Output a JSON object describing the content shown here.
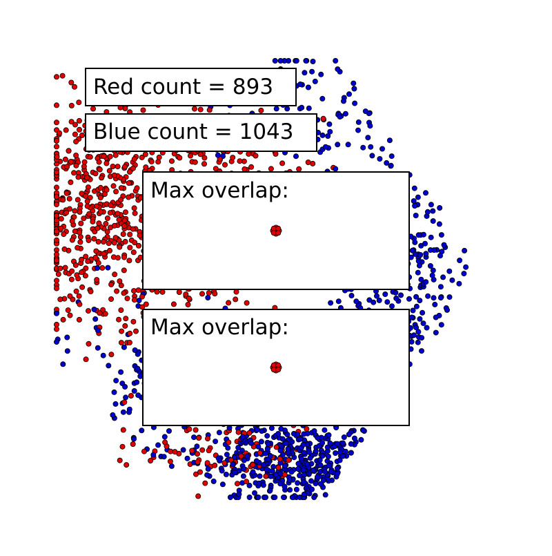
{
  "chart_data": {
    "type": "scatter",
    "title": "",
    "xlabel": "",
    "ylabel": "",
    "grid": false,
    "axes_visible": false,
    "series": [
      {
        "color": "#e00000",
        "count": 893,
        "clusters": [
          {
            "cx": 0.11,
            "cy": 0.33,
            "sx": 0.09,
            "sy": 0.14,
            "n": 560
          },
          {
            "cx": 0.42,
            "cy": 0.25,
            "sx": 0.1,
            "sy": 0.06,
            "n": 150
          },
          {
            "cx": 0.3,
            "cy": 0.6,
            "sx": 0.12,
            "sy": 0.09,
            "n": 90
          },
          {
            "cx": 0.38,
            "cy": 0.9,
            "sx": 0.1,
            "sy": 0.04,
            "n": 93
          }
        ]
      },
      {
        "color": "#0000cc",
        "count": 1043,
        "clusters": [
          {
            "cx": 0.6,
            "cy": 0.92,
            "sx": 0.12,
            "sy": 0.05,
            "n": 430
          },
          {
            "cx": 0.8,
            "cy": 0.5,
            "sx": 0.09,
            "sy": 0.17,
            "n": 300
          },
          {
            "cx": 0.55,
            "cy": 0.12,
            "sx": 0.1,
            "sy": 0.08,
            "n": 140
          },
          {
            "cx": 0.25,
            "cy": 0.72,
            "sx": 0.12,
            "sy": 0.1,
            "n": 173
          }
        ]
      }
    ],
    "annotations": {
      "red_count": "Red count = 893",
      "blue_count": "Blue count = 1043",
      "max_overlap_label": "Max overlap:"
    },
    "overlap_marker_color": "#e00000"
  }
}
